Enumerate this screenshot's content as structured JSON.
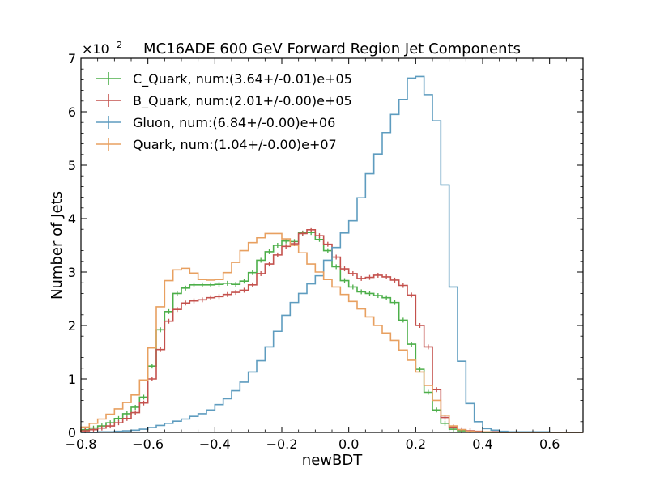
{
  "chart_data": {
    "type": "line",
    "title": "MC16ADE 600 GeV Forward Region Jet Components",
    "xlabel": "newBDT",
    "ylabel": "Number of Jets",
    "xlim": [
      -0.8,
      0.7
    ],
    "ylim": [
      0,
      7
    ],
    "y_multiplier": "×10",
    "y_multiplier_exp": "−2",
    "x_ticks": [
      "−0.8",
      "−0.6",
      "−0.4",
      "−0.2",
      "0.0",
      "0.2",
      "0.4",
      "0.6"
    ],
    "y_ticks": [
      "0",
      "1",
      "2",
      "3",
      "4",
      "5",
      "6",
      "7"
    ],
    "legend_position": "upper-left",
    "bin_width": 0.025,
    "bin_start": -0.8,
    "series": [
      {
        "name": "C_Quark, num:(3.64+/-0.01)e+05",
        "color": "#4daf4a",
        "errorbars": true,
        "values": [
          0.05,
          0.08,
          0.12,
          0.18,
          0.26,
          0.35,
          0.47,
          0.66,
          1.24,
          1.92,
          2.26,
          2.6,
          2.7,
          2.76,
          2.76,
          2.76,
          2.77,
          2.79,
          2.77,
          2.83,
          2.99,
          3.22,
          3.38,
          3.5,
          3.58,
          3.57,
          3.73,
          3.74,
          3.61,
          3.4,
          3.1,
          2.84,
          2.72,
          2.63,
          2.6,
          2.56,
          2.52,
          2.43,
          2.1,
          1.65,
          1.18,
          0.75,
          0.42,
          0.17,
          0.06,
          0.03,
          0.01,
          0.01,
          0.0,
          0.0,
          0.0,
          0.0,
          0.0,
          0.0,
          0.0,
          0.0,
          0.0,
          0.0,
          0.0,
          0.0
        ]
      },
      {
        "name": "B_Quark, num:(2.01+/-0.00)e+05",
        "color": "#c4514d",
        "errorbars": true,
        "values": [
          0.03,
          0.05,
          0.08,
          0.12,
          0.18,
          0.26,
          0.37,
          0.55,
          1.0,
          1.55,
          2.08,
          2.3,
          2.42,
          2.46,
          2.48,
          2.52,
          2.54,
          2.58,
          2.62,
          2.66,
          2.76,
          2.97,
          3.15,
          3.32,
          3.48,
          3.53,
          3.72,
          3.79,
          3.68,
          3.52,
          3.28,
          3.06,
          2.97,
          2.88,
          2.9,
          2.94,
          2.91,
          2.85,
          2.75,
          2.57,
          2.0,
          1.6,
          0.8,
          0.28,
          0.1,
          0.05,
          0.03,
          0.02,
          0.01,
          0.01,
          0.0,
          0.0,
          0.0,
          0.0,
          0.0,
          0.0,
          0.0,
          0.0,
          0.0,
          0.0
        ]
      },
      {
        "name": "Gluon, num:(6.84+/-0.00)e+06",
        "color": "#5e9cbf",
        "errorbars": false,
        "values": [
          0.0,
          0.0,
          0.01,
          0.01,
          0.02,
          0.03,
          0.04,
          0.06,
          0.09,
          0.13,
          0.17,
          0.21,
          0.25,
          0.3,
          0.35,
          0.42,
          0.52,
          0.63,
          0.78,
          0.94,
          1.13,
          1.34,
          1.6,
          1.89,
          2.19,
          2.43,
          2.6,
          2.78,
          2.93,
          3.22,
          3.46,
          3.73,
          3.96,
          4.39,
          4.84,
          5.21,
          5.61,
          5.95,
          6.23,
          6.63,
          6.66,
          6.32,
          5.83,
          4.63,
          2.72,
          1.33,
          0.54,
          0.2,
          0.07,
          0.04,
          0.02,
          0.01,
          0.01,
          0.01,
          0.01,
          0.01,
          0.0,
          0.0,
          0.0,
          0.0
        ]
      },
      {
        "name": "Quark, num:(1.04+/-0.00)e+07",
        "color": "#e8a060",
        "errorbars": false,
        "values": [
          0.1,
          0.17,
          0.25,
          0.34,
          0.44,
          0.56,
          0.7,
          0.98,
          1.58,
          2.35,
          2.84,
          3.04,
          3.07,
          2.98,
          2.86,
          2.85,
          2.86,
          2.99,
          3.18,
          3.4,
          3.55,
          3.64,
          3.72,
          3.72,
          3.62,
          3.5,
          3.36,
          3.15,
          3.0,
          2.86,
          2.72,
          2.58,
          2.45,
          2.31,
          2.16,
          2.0,
          1.86,
          1.72,
          1.54,
          1.35,
          1.13,
          0.88,
          0.6,
          0.32,
          0.12,
          0.05,
          0.02,
          0.01,
          0.01,
          0.0,
          0.0,
          0.0,
          0.0,
          0.0,
          0.0,
          0.0,
          0.0,
          0.0,
          0.0,
          0.0
        ]
      }
    ]
  }
}
